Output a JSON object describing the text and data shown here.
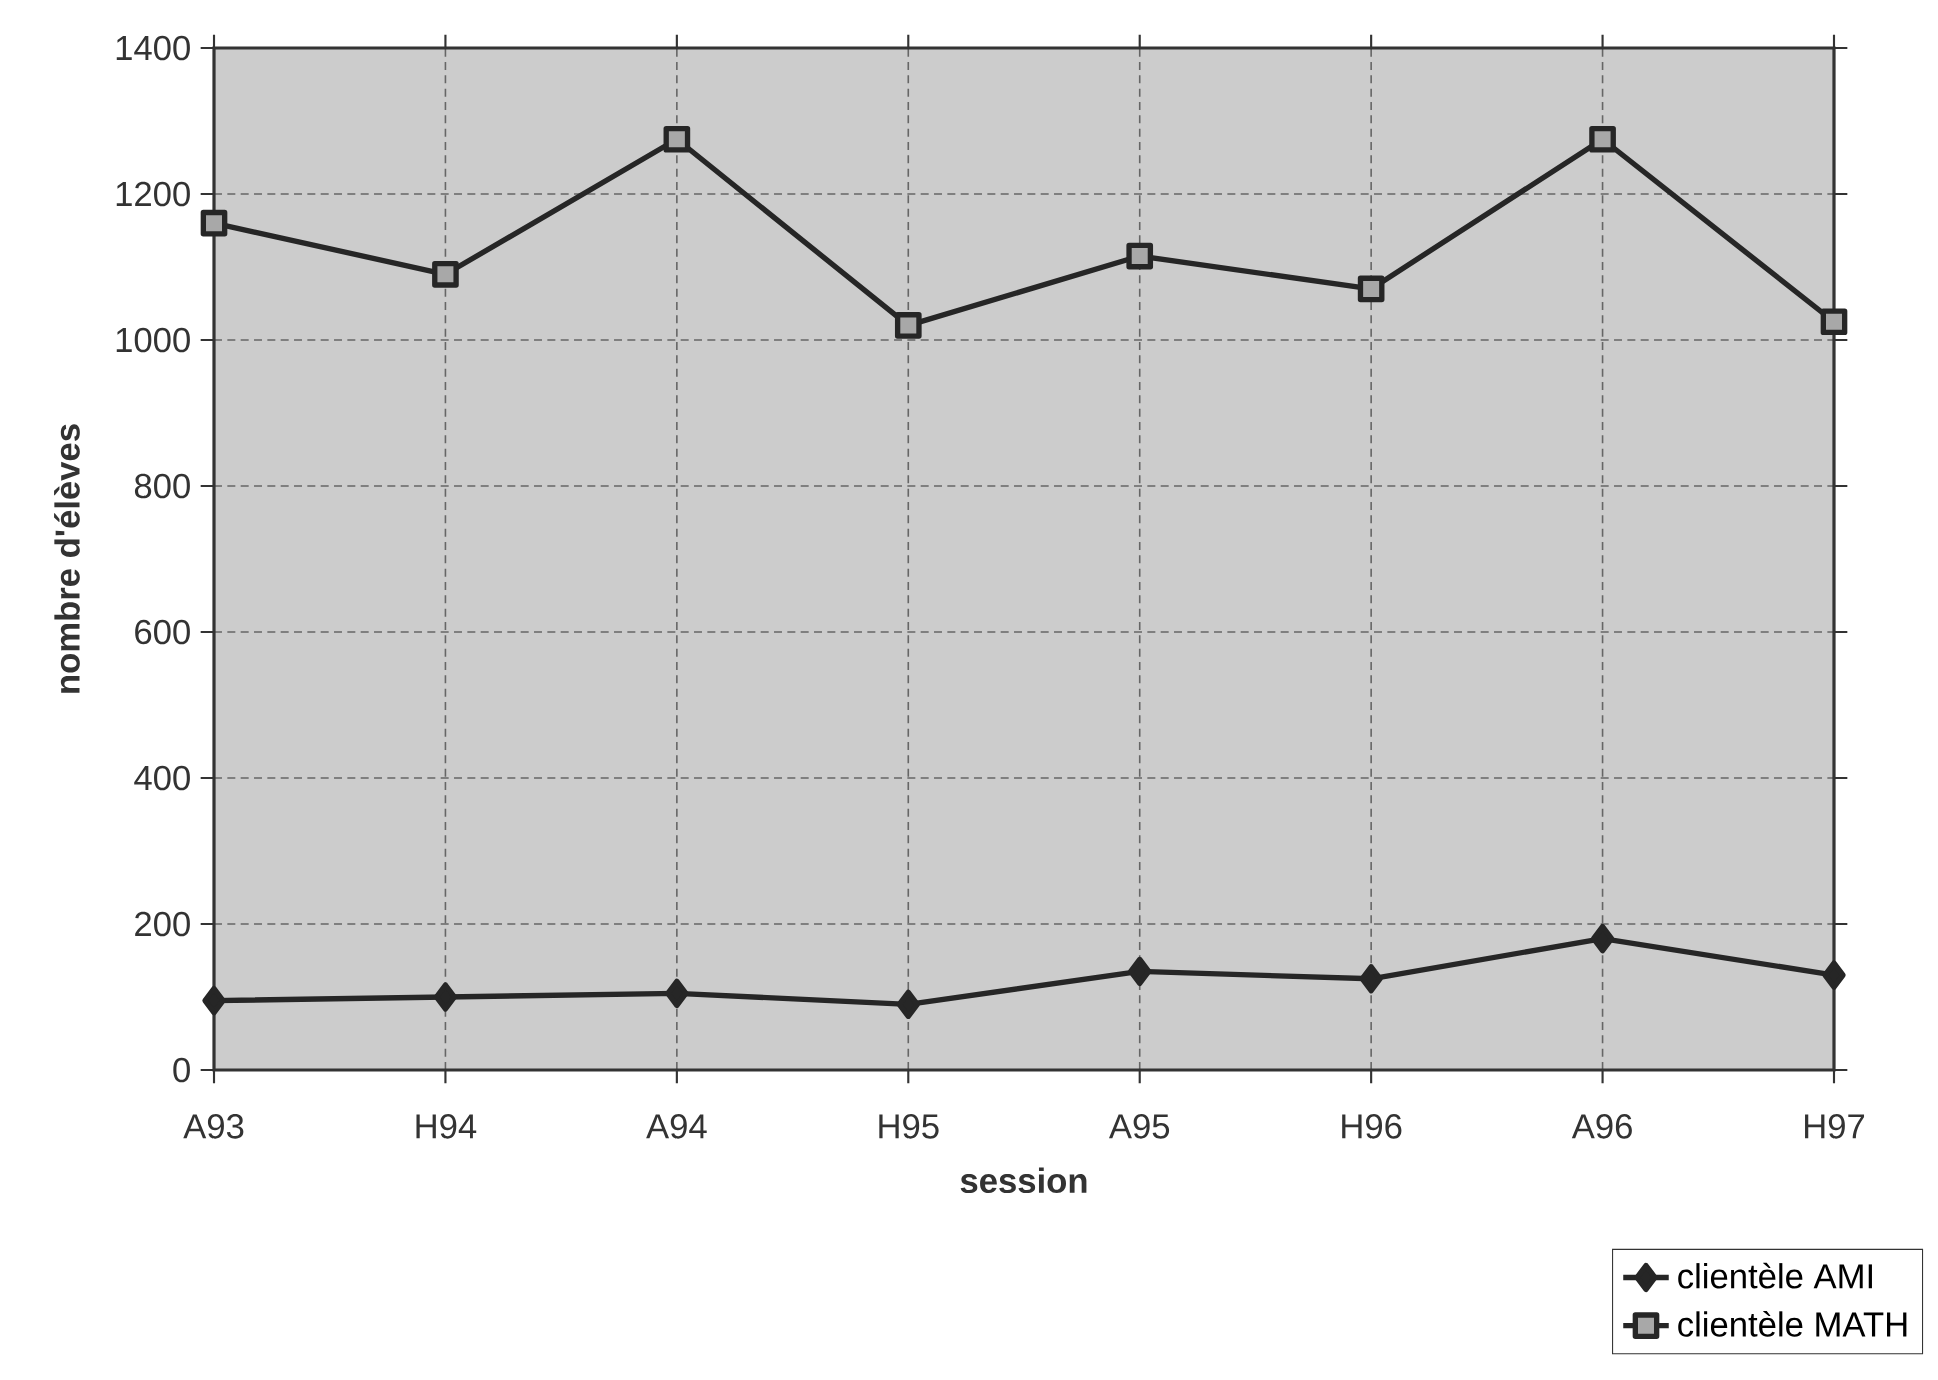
{
  "chart_data": {
    "type": "line",
    "xlabel": "session",
    "ylabel": "nombre d'élèves",
    "categories": [
      "A93",
      "H94",
      "A94",
      "H95",
      "A95",
      "H96",
      "A96",
      "H97"
    ],
    "series": [
      {
        "name": "clientèle AMI",
        "color": "#262626",
        "marker": "diamond",
        "values": [
          95,
          100,
          105,
          90,
          135,
          125,
          180,
          130
        ]
      },
      {
        "name": "clientèle MATH",
        "color": "#262626",
        "marker": "square",
        "values": [
          1160,
          1090,
          1275,
          1020,
          1115,
          1070,
          1275,
          1025
        ]
      }
    ],
    "ylim": [
      0,
      1400
    ],
    "yticks": [
      0,
      200,
      400,
      600,
      800,
      1000,
      1200,
      1400
    ],
    "grid": true,
    "legend": "bottom right",
    "line_style": "solid"
  }
}
